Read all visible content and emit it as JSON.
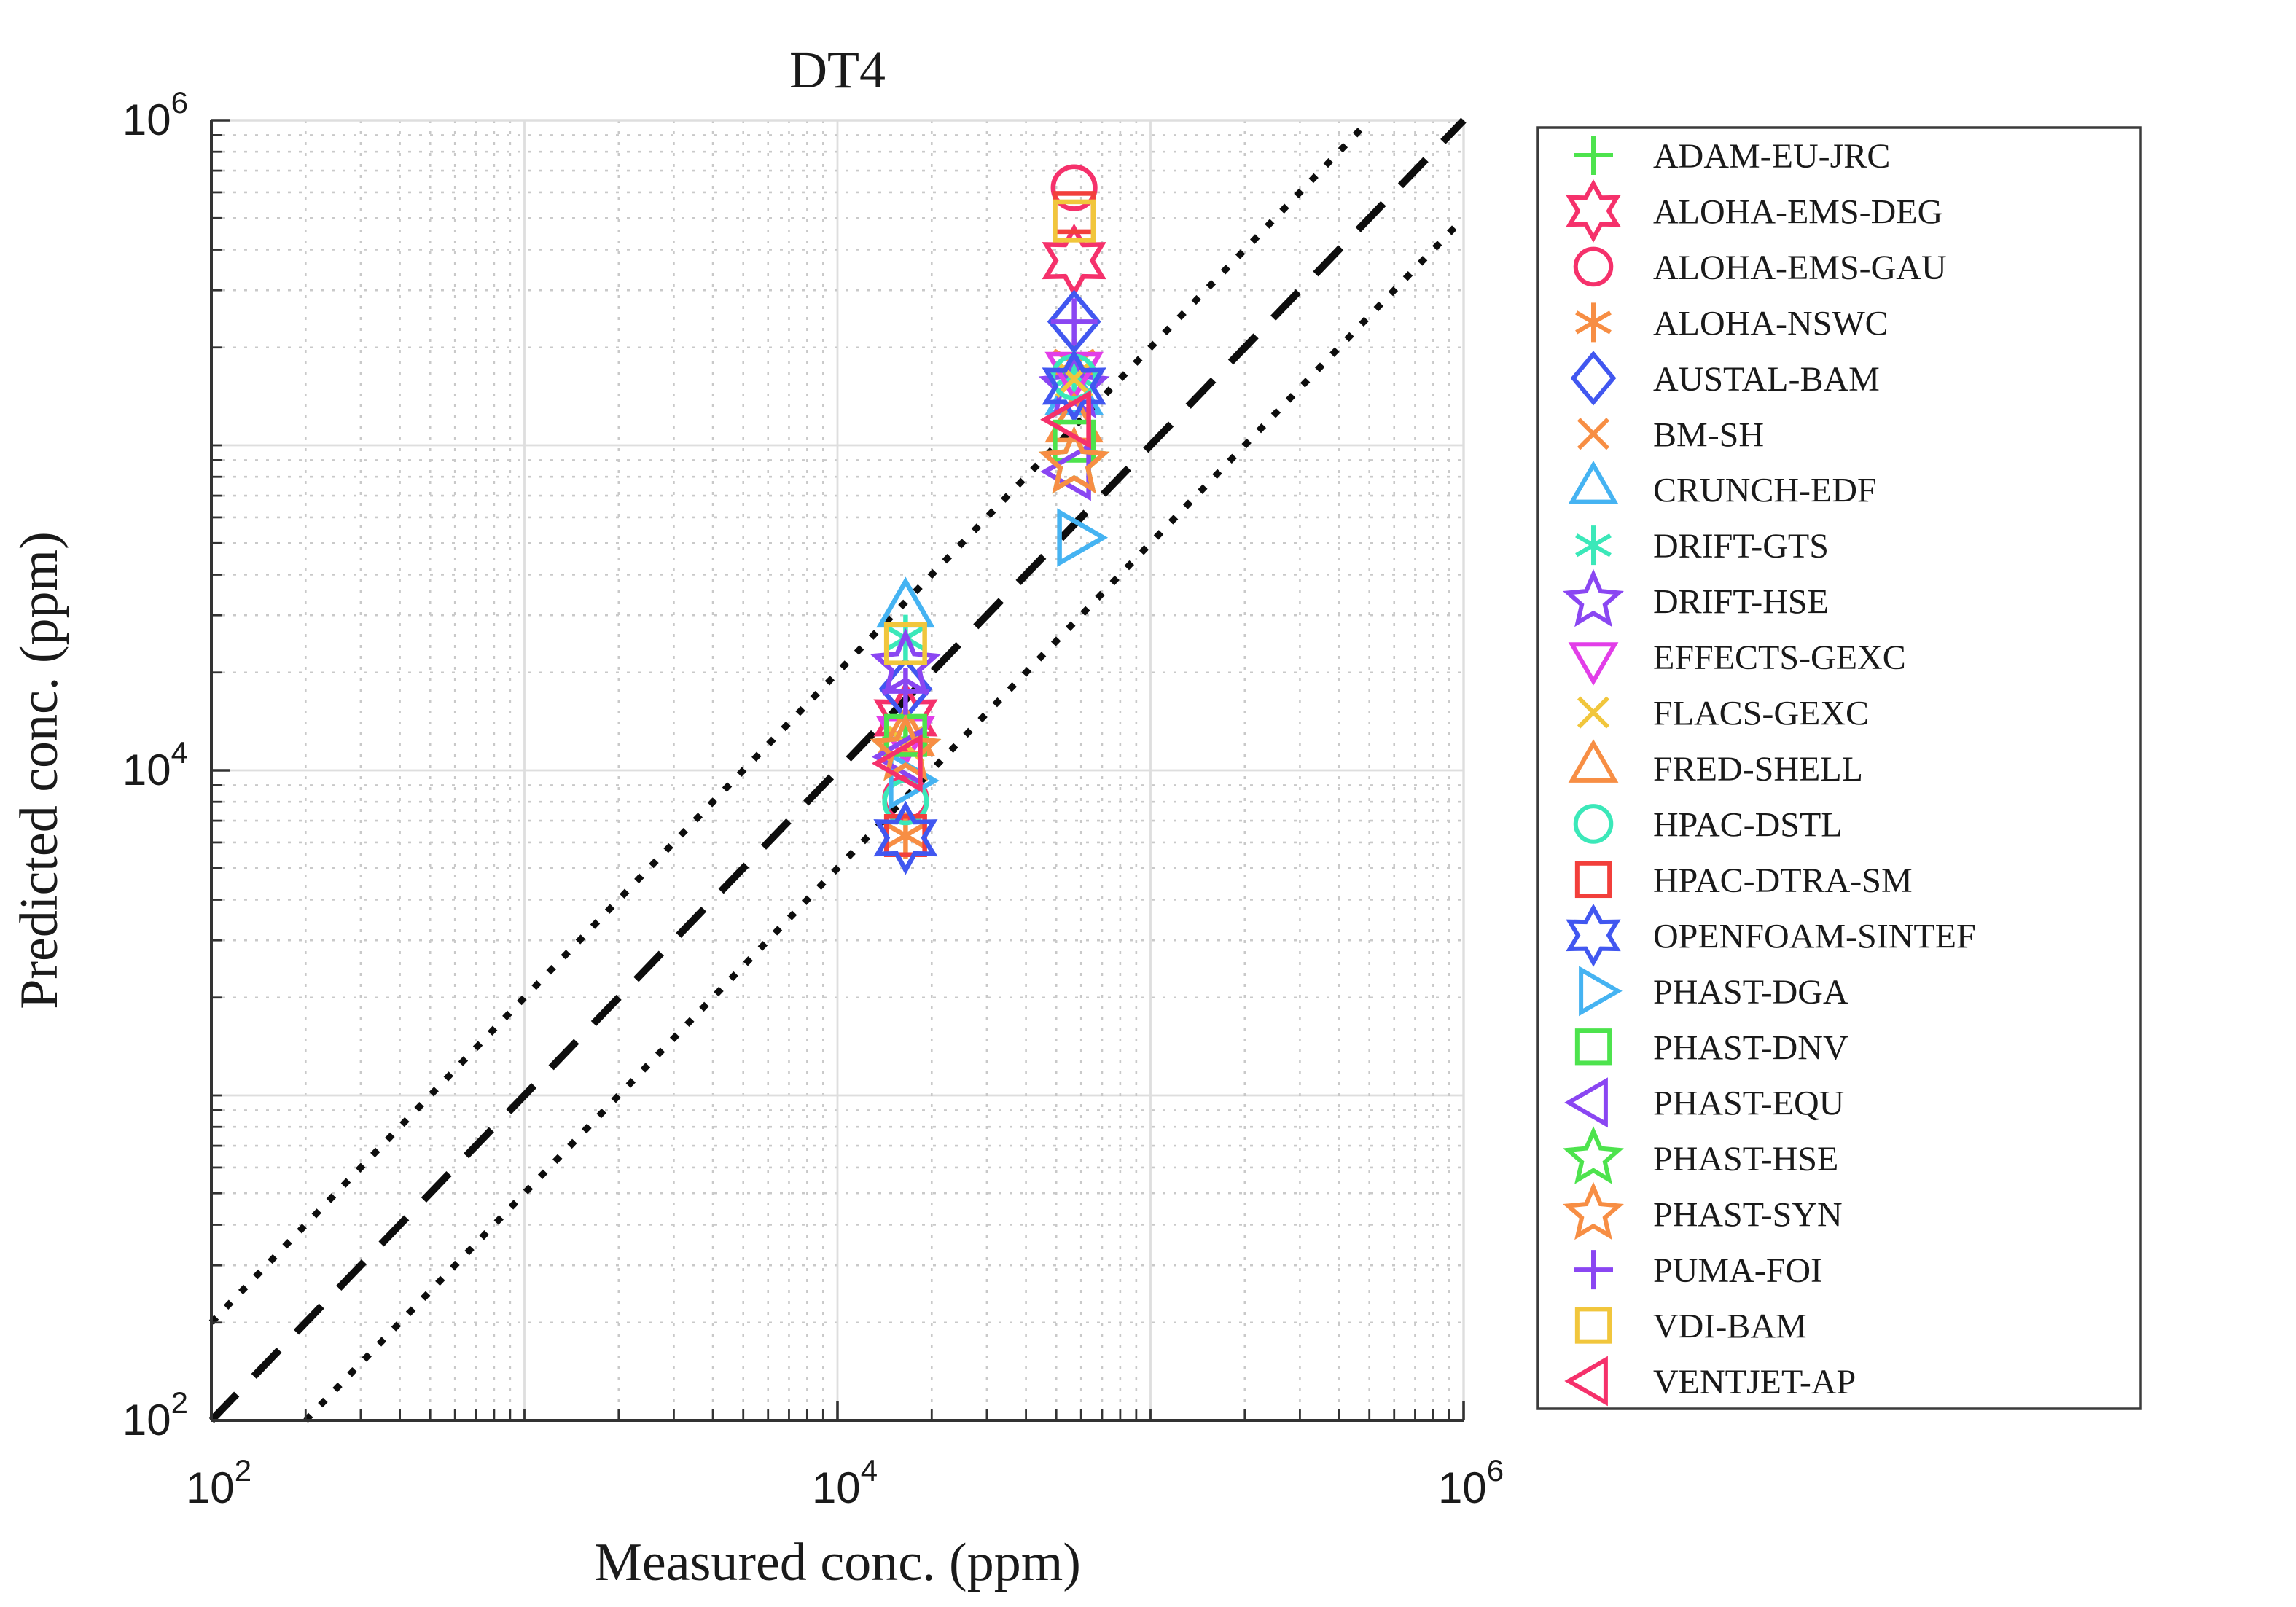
{
  "title": "DT4",
  "colors": {
    "axis": "#333333",
    "major_grid": "#dedede",
    "minor_grid": "#c9c9c9",
    "reference_line": "#0d0d0d",
    "legend_border": "#3b3b3b",
    "text": "#1a1a1a"
  },
  "chart_data": {
    "type": "scatter",
    "title": "DT4",
    "xlabel": "Measured conc. (ppm)",
    "ylabel": "Predicted conc. (ppm)",
    "xscale": "log",
    "yscale": "log",
    "xlim": [
      100,
      1000000
    ],
    "ylim": [
      100,
      1000000
    ],
    "x_tick_exponents": [
      2,
      4,
      6
    ],
    "y_tick_exponents": [
      2,
      4,
      6
    ],
    "grid": {
      "major": "solid",
      "minor": "dotted",
      "minor_mantissas": [
        2,
        3,
        4,
        5,
        6,
        7,
        8,
        9
      ]
    },
    "legend_position": "right-outside",
    "reference_lines": [
      {
        "name": "identity-1-to-1",
        "style": "dashed",
        "points": [
          [
            100,
            100
          ],
          [
            1000000,
            1000000
          ]
        ]
      },
      {
        "name": "factor-2-upper",
        "style": "dotted",
        "points": [
          [
            100,
            200
          ],
          [
            500000,
            1000000
          ]
        ]
      },
      {
        "name": "factor-2-lower",
        "style": "dotted",
        "points": [
          [
            200,
            100
          ],
          [
            1000000,
            500000
          ]
        ]
      }
    ],
    "series": [
      {
        "name": "ADAM-EU-JRC",
        "marker": "plus",
        "color": "#4de34d",
        "points": [
          [
            16500,
            12500
          ],
          [
            57000,
            165000
          ]
        ]
      },
      {
        "name": "ALOHA-EMS-DEG",
        "marker": "hexagram",
        "color": "#f5316b",
        "points": [
          [
            16500,
            14500
          ],
          [
            57000,
            370000
          ]
        ]
      },
      {
        "name": "ALOHA-EMS-GAU",
        "marker": "circle",
        "color": "#f5316b",
        "points": [
          [
            16500,
            8200
          ],
          [
            57000,
            620000
          ]
        ]
      },
      {
        "name": "ALOHA-NSWC",
        "marker": "asterisk",
        "color": "#f78e44",
        "points": [
          [
            16500,
            6300
          ],
          [
            57000,
            180000
          ]
        ]
      },
      {
        "name": "AUSTAL-BAM",
        "marker": "diamond",
        "color": "#4157f0",
        "points": [
          [
            16500,
            17800
          ],
          [
            57000,
            240000
          ]
        ]
      },
      {
        "name": "BM-SH",
        "marker": "x",
        "color": "#f78e44",
        "points": [
          [
            16500,
            12000
          ],
          [
            57000,
            160000
          ]
        ]
      },
      {
        "name": "CRUNCH-EDF",
        "marker": "triangle-up",
        "color": "#45b3f2",
        "points": [
          [
            16500,
            31000
          ],
          [
            57000,
            140000
          ]
        ]
      },
      {
        "name": "DRIFT-GTS",
        "marker": "asterisk",
        "color": "#3be8b9",
        "points": [
          [
            16500,
            25500
          ],
          [
            57000,
            165000
          ]
        ]
      },
      {
        "name": "DRIFT-HSE",
        "marker": "star",
        "color": "#8a46f2",
        "points": [
          [
            16500,
            21000
          ],
          [
            57000,
            150000
          ]
        ]
      },
      {
        "name": "EFFECTS-GEXC",
        "marker": "triangle-down",
        "color": "#e23ee8",
        "points": [
          [
            16500,
            13000
          ],
          [
            57000,
            172000
          ]
        ]
      },
      {
        "name": "FLACS-GEXC",
        "marker": "x",
        "color": "#f1c63c",
        "points": [
          [
            16500,
            12000
          ],
          [
            57000,
            160000
          ]
        ]
      },
      {
        "name": "FRED-SHELL",
        "marker": "triangle-up",
        "color": "#f78e44",
        "points": [
          [
            16500,
            12500
          ],
          [
            57000,
            115000
          ]
        ]
      },
      {
        "name": "HPAC-DSTL",
        "marker": "circle",
        "color": "#3be8b9",
        "points": [
          [
            16500,
            8000
          ],
          [
            57000,
            162000
          ]
        ]
      },
      {
        "name": "HPAC-DTRA-SM",
        "marker": "square",
        "color": "#f23f3b",
        "points": [
          [
            16500,
            6300
          ],
          [
            57000,
            520000
          ]
        ]
      },
      {
        "name": "OPENFOAM-SINTEF",
        "marker": "hexagram",
        "color": "#4157f0",
        "points": [
          [
            16500,
            6200
          ],
          [
            57000,
            152000
          ]
        ]
      },
      {
        "name": "PHAST-DGA",
        "marker": "triangle-right",
        "color": "#45b3f2",
        "points": [
          [
            16500,
            9300
          ],
          [
            57000,
            52000
          ]
        ]
      },
      {
        "name": "PHAST-DNV",
        "marker": "square",
        "color": "#4de34d",
        "points": [
          [
            16500,
            12800
          ],
          [
            57000,
            103000
          ]
        ]
      },
      {
        "name": "PHAST-EQU",
        "marker": "triangle-left",
        "color": "#8a46f2",
        "points": [
          [
            16500,
            11000
          ],
          [
            57000,
            83000
          ]
        ]
      },
      {
        "name": "PHAST-HSE",
        "marker": "star",
        "color": "#4de34d",
        "points": [
          [
            16500,
            11500
          ],
          [
            57000,
            88000
          ]
        ]
      },
      {
        "name": "PHAST-SYN",
        "marker": "star",
        "color": "#f78e44",
        "points": [
          [
            16500,
            11500
          ],
          [
            57000,
            88000
          ]
        ]
      },
      {
        "name": "PUMA-FOI",
        "marker": "plus",
        "color": "#8a46f2",
        "points": [
          [
            16500,
            17500
          ],
          [
            57000,
            240000
          ]
        ]
      },
      {
        "name": "VDI-BAM",
        "marker": "square",
        "color": "#f1c63c",
        "points": [
          [
            16500,
            24500
          ],
          [
            57000,
            490000
          ]
        ]
      },
      {
        "name": "VENTJET-AP",
        "marker": "triangle-left",
        "color": "#f5316b",
        "points": [
          [
            16500,
            10500
          ],
          [
            57000,
            120000
          ]
        ]
      }
    ]
  }
}
